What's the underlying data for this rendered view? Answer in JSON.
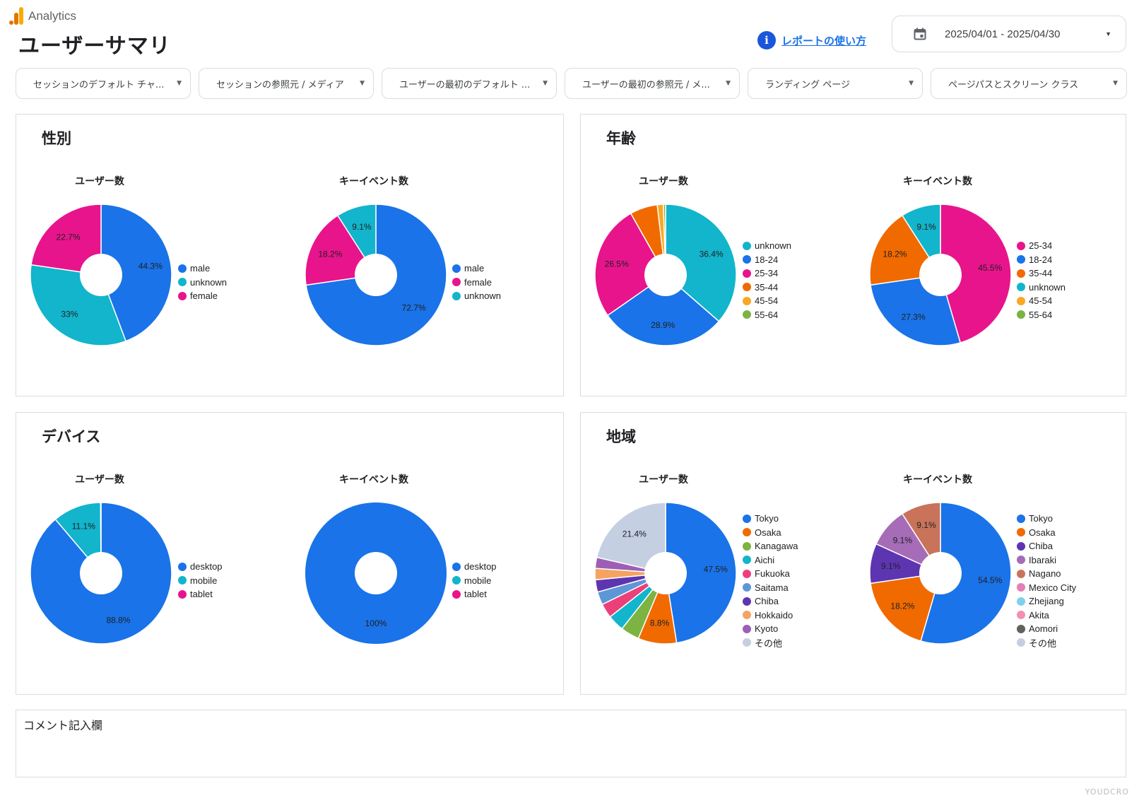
{
  "app": {
    "name": "Analytics"
  },
  "page": {
    "title": "ユーザーサマリ"
  },
  "help": {
    "label": "レポートの使い方"
  },
  "date_range": {
    "value": "2025/04/01 - 2025/04/30"
  },
  "filters": [
    {
      "label": "セッションのデフォルト チャ..."
    },
    {
      "label": "セッションの参照元 / メディア"
    },
    {
      "label": "ユーザーの最初のデフォルト ..."
    },
    {
      "label": "ユーザーの最初の参照元 / メ..."
    },
    {
      "label": "ランディング ページ"
    },
    {
      "label": "ページパスとスクリーン クラス"
    }
  ],
  "chart_data": [
    {
      "type": "pie",
      "section": "性別",
      "title": "ユーザー数",
      "slices": [
        {
          "name": "male",
          "value": 44.3,
          "label": "44.3%",
          "color": "#1a73e8"
        },
        {
          "name": "unknown",
          "value": 33.0,
          "label": "33%",
          "color": "#12b5cb"
        },
        {
          "name": "female",
          "value": 22.7,
          "label": "22.7%",
          "color": "#e8148c"
        }
      ]
    },
    {
      "type": "pie",
      "section": "性別",
      "title": "キーイベント数",
      "slices": [
        {
          "name": "male",
          "value": 72.7,
          "label": "72.7%",
          "color": "#1a73e8"
        },
        {
          "name": "female",
          "value": 18.2,
          "label": "18.2%",
          "color": "#e8148c"
        },
        {
          "name": "unknown",
          "value": 9.1,
          "label": "9.1%",
          "color": "#12b5cb"
        }
      ]
    },
    {
      "type": "pie",
      "section": "年齢",
      "title": "ユーザー数",
      "slices": [
        {
          "name": "unknown",
          "value": 36.4,
          "label": "36.4%",
          "color": "#12b5cb"
        },
        {
          "name": "18-24",
          "value": 28.9,
          "label": "28.9%",
          "color": "#1a73e8"
        },
        {
          "name": "25-34",
          "value": 26.5,
          "label": "26.5%",
          "color": "#e8148c"
        },
        {
          "name": "35-44",
          "value": 6.3,
          "label": "",
          "color": "#f06a00"
        },
        {
          "name": "45-54",
          "value": 1.4,
          "label": "",
          "color": "#f9a825"
        },
        {
          "name": "55-64",
          "value": 0.5,
          "label": "",
          "color": "#7cb342"
        }
      ]
    },
    {
      "type": "pie",
      "section": "年齢",
      "title": "キーイベント数",
      "slices": [
        {
          "name": "25-34",
          "value": 45.5,
          "label": "45.5%",
          "color": "#e8148c"
        },
        {
          "name": "18-24",
          "value": 27.3,
          "label": "27.3%",
          "color": "#1a73e8"
        },
        {
          "name": "35-44",
          "value": 18.2,
          "label": "18.2%",
          "color": "#f06a00"
        },
        {
          "name": "unknown",
          "value": 9.1,
          "label": "9.1%",
          "color": "#12b5cb"
        },
        {
          "name": "45-54",
          "value": 0,
          "label": "",
          "color": "#f9a825"
        },
        {
          "name": "55-64",
          "value": 0,
          "label": "",
          "color": "#7cb342"
        }
      ]
    },
    {
      "type": "pie",
      "section": "デバイス",
      "title": "ユーザー数",
      "slices": [
        {
          "name": "desktop",
          "value": 88.8,
          "label": "88.8%",
          "color": "#1a73e8"
        },
        {
          "name": "mobile",
          "value": 11.1,
          "label": "11.1%",
          "color": "#12b5cb"
        },
        {
          "name": "tablet",
          "value": 0.1,
          "label": "",
          "color": "#e8148c"
        }
      ]
    },
    {
      "type": "pie",
      "section": "デバイス",
      "title": "キーイベント数",
      "slices": [
        {
          "name": "desktop",
          "value": 100,
          "label": "100%",
          "color": "#1a73e8"
        },
        {
          "name": "mobile",
          "value": 0,
          "label": "",
          "color": "#12b5cb"
        },
        {
          "name": "tablet",
          "value": 0,
          "label": "",
          "color": "#e8148c"
        }
      ]
    },
    {
      "type": "pie",
      "section": "地域",
      "title": "ユーザー数",
      "slices": [
        {
          "name": "Tokyo",
          "value": 47.5,
          "label": "47.5%",
          "color": "#1a73e8"
        },
        {
          "name": "Osaka",
          "value": 8.8,
          "label": "8.8%",
          "color": "#f06a00"
        },
        {
          "name": "Kanagawa",
          "value": 4.3,
          "label": "",
          "color": "#7cb342"
        },
        {
          "name": "Aichi",
          "value": 3.8,
          "label": "",
          "color": "#12b5cb"
        },
        {
          "name": "Fukuoka",
          "value": 3.3,
          "label": "",
          "color": "#ec407a"
        },
        {
          "name": "Saitama",
          "value": 3.0,
          "label": "",
          "color": "#5e97d6"
        },
        {
          "name": "Chiba",
          "value": 2.8,
          "label": "",
          "color": "#5e35b1"
        },
        {
          "name": "Hokkaido",
          "value": 2.6,
          "label": "",
          "color": "#f4a460"
        },
        {
          "name": "Kyoto",
          "value": 2.5,
          "label": "",
          "color": "#9c5fb5"
        },
        {
          "name": "その他",
          "value": 21.4,
          "label": "21.4%",
          "color": "#c5cfe2"
        }
      ]
    },
    {
      "type": "pie",
      "section": "地域",
      "title": "キーイベント数",
      "slices": [
        {
          "name": "Tokyo",
          "value": 54.5,
          "label": "54.5%",
          "color": "#1a73e8"
        },
        {
          "name": "Osaka",
          "value": 18.2,
          "label": "18.2%",
          "color": "#f06a00"
        },
        {
          "name": "Chiba",
          "value": 9.1,
          "label": "9.1%",
          "color": "#5e35b1"
        },
        {
          "name": "Ibaraki",
          "value": 9.1,
          "label": "9.1%",
          "color": "#a66cb8"
        },
        {
          "name": "Nagano",
          "value": 9.1,
          "label": "9.1%",
          "color": "#c8735a"
        },
        {
          "name": "Mexico City",
          "value": 0,
          "label": "",
          "color": "#e57fb6"
        },
        {
          "name": "Zhejiang",
          "value": 0,
          "label": "",
          "color": "#80d0ec"
        },
        {
          "name": "Akita",
          "value": 0,
          "label": "",
          "color": "#f48fb1"
        },
        {
          "name": "Aomori",
          "value": 0,
          "label": "",
          "color": "#616161"
        },
        {
          "name": "その他",
          "value": 0,
          "label": "",
          "color": "#c5cfe2"
        }
      ]
    }
  ],
  "panels": [
    {
      "title": "性別",
      "chart_titles": [
        "ユーザー数",
        "キーイベント数"
      ]
    },
    {
      "title": "年齢",
      "chart_titles": [
        "ユーザー数",
        "キーイベント数"
      ]
    },
    {
      "title": "デバイス",
      "chart_titles": [
        "ユーザー数",
        "キーイベント数"
      ]
    },
    {
      "title": "地域",
      "chart_titles": [
        "ユーザー数",
        "キーイベント数"
      ]
    }
  ],
  "comment": {
    "label": "コメント記入欄"
  },
  "watermark": "YOUDCRO"
}
